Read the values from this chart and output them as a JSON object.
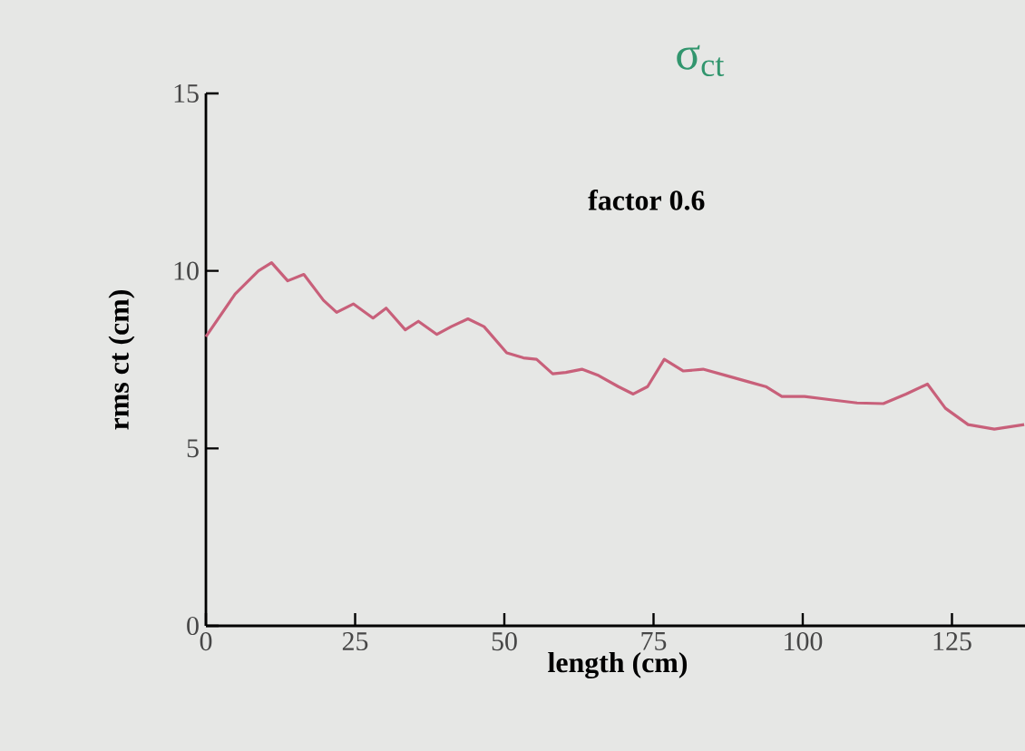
{
  "chart_data": {
    "type": "line",
    "title": "σ$_{ct}$",
    "xlabel": "length (cm)",
    "ylabel": "rms ct (cm)",
    "annotations": [
      "factor 0.6"
    ],
    "xlim": [
      0,
      138
    ],
    "xticks": [
      0,
      25,
      50,
      75,
      100,
      125
    ],
    "ylim": [
      0,
      15
    ],
    "yticks": [
      0,
      5,
      10,
      15
    ],
    "grid": false,
    "marker": "none",
    "line_style": "solid",
    "series": [
      {
        "color": "#c8607a",
        "x": [
          0,
          4.9,
          8.8,
          11,
          13.7,
          16.4,
          19.7,
          21.9,
          24.7,
          28,
          30.2,
          33.4,
          35.6,
          38.7,
          41.1,
          43.9,
          46.6,
          50.4,
          53.2,
          55.4,
          58.1,
          60.3,
          63,
          65.8,
          69.1,
          71.6,
          74,
          76.8,
          80,
          83.3,
          87.2,
          91,
          93.8,
          96.5,
          100.3,
          104.7,
          109.1,
          113.5,
          117.3,
          120.9,
          123.9,
          127.7,
          132.1,
          137.1
        ],
        "values": [
          8.15,
          9.35,
          10.0,
          10.23,
          9.72,
          9.9,
          9.17,
          8.83,
          9.07,
          8.67,
          8.95,
          8.34,
          8.58,
          8.21,
          8.43,
          8.65,
          8.43,
          7.69,
          7.55,
          7.51,
          7.1,
          7.14,
          7.23,
          7.05,
          6.74,
          6.53,
          6.74,
          7.51,
          7.18,
          7.23,
          7.05,
          6.87,
          6.74,
          6.46,
          6.46,
          6.37,
          6.28,
          6.26,
          6.53,
          6.81,
          6.13,
          5.67,
          5.54,
          5.67
        ]
      }
    ]
  }
}
